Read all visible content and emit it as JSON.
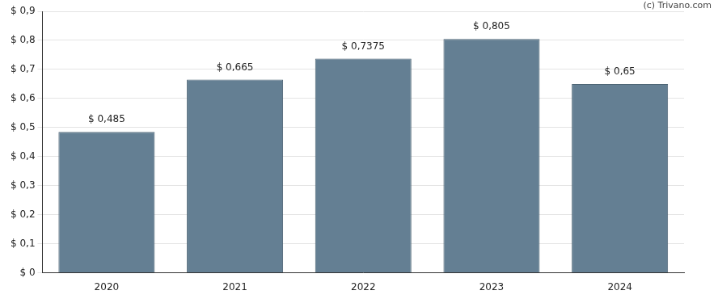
{
  "chart_data": {
    "type": "bar",
    "annotation": "(c) Trivano.com",
    "categories": [
      "2020",
      "2021",
      "2022",
      "2023",
      "2024"
    ],
    "values": [
      0.485,
      0.665,
      0.7375,
      0.805,
      0.65
    ],
    "value_labels": [
      "$ 0,485",
      "$ 0,665",
      "$ 0,7375",
      "$ 0,805",
      "$ 0,65"
    ],
    "color": "#647f93",
    "ylim": [
      0,
      0.9
    ],
    "yticks": [
      {
        "value": 0,
        "label": "$ 0"
      },
      {
        "value": 0.1,
        "label": "$ 0,1"
      },
      {
        "value": 0.2,
        "label": "$ 0,2"
      },
      {
        "value": 0.3,
        "label": "$ 0,3"
      },
      {
        "value": 0.4,
        "label": "$ 0,4"
      },
      {
        "value": 0.5,
        "label": "$ 0,5"
      },
      {
        "value": 0.6,
        "label": "$ 0,6"
      },
      {
        "value": 0.7,
        "label": "$ 0,7"
      },
      {
        "value": 0.8,
        "label": "$ 0,8"
      },
      {
        "value": 0.9,
        "label": "$ 0,9"
      }
    ],
    "grid": true,
    "data_labels": true
  }
}
